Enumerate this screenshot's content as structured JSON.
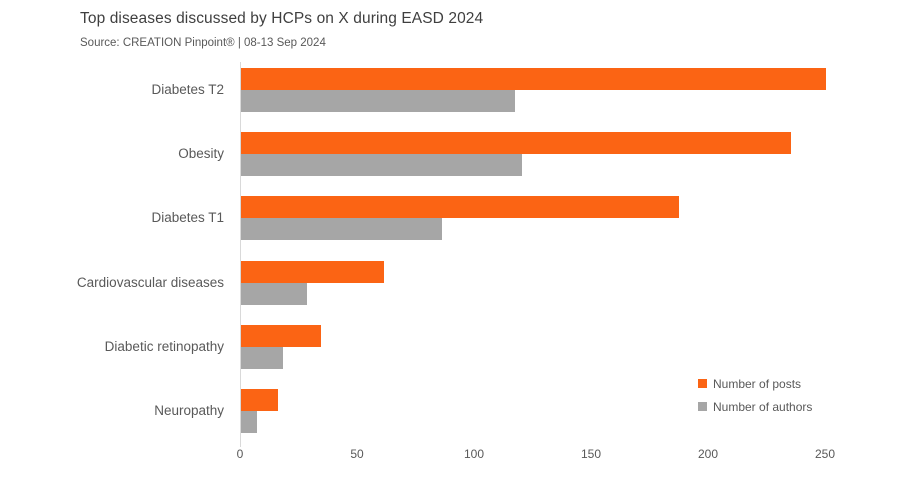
{
  "title": "Top diseases discussed by HCPs on X during EASD 2024",
  "subtitle": "Source: CREATION Pinpoint® | 08-13 Sep 2024",
  "colors": {
    "posts": "#FB6414",
    "authors": "#A6A6A6",
    "title_text": "#3F3F3F",
    "subtitle_text": "#595959",
    "axis_line": "#D9D9D9",
    "tick_text": "#595959"
  },
  "legend": {
    "position": "right-bottom",
    "items": [
      {
        "label": "Number of posts",
        "series": "posts"
      },
      {
        "label": "Number of authors",
        "series": "authors"
      }
    ]
  },
  "chart_data": {
    "type": "bar",
    "orientation": "horizontal",
    "title": "Top diseases discussed by HCPs on X during EASD 2024",
    "subtitle": "Source: CREATION Pinpoint® | 08-13 Sep 2024",
    "categories": [
      "Diabetes T2",
      "Obesity",
      "Diabetes T1",
      "Cardiovascular diseases",
      "Diabetic retinopathy",
      "Neuropathy"
    ],
    "series": [
      {
        "name": "Number of posts",
        "color": "#FB6414",
        "values": [
          250,
          235,
          187,
          61,
          34,
          16
        ]
      },
      {
        "name": "Number of authors",
        "color": "#A6A6A6",
        "values": [
          117,
          120,
          86,
          28,
          18,
          7
        ]
      }
    ],
    "xlabel": "",
    "ylabel": "",
    "xlim": [
      0,
      260
    ],
    "xticks": [
      0,
      50,
      100,
      150,
      200,
      250
    ],
    "grid": false,
    "legend_position": "right-bottom"
  }
}
